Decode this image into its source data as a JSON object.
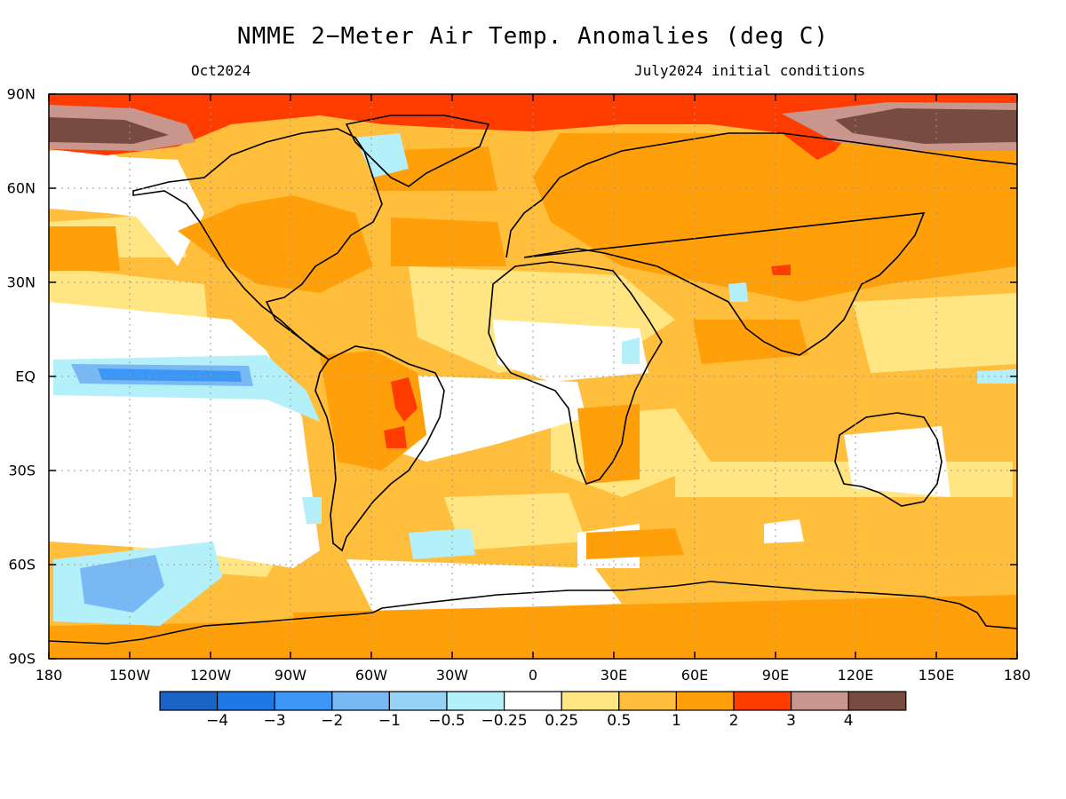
{
  "title": "NMME 2−Meter Air Temp. Anomalies (deg C)",
  "subtitle_left": "Oct2024",
  "subtitle_right": "July2024 initial conditions",
  "lat_labels": [
    "90N",
    "60N",
    "30N",
    "EQ",
    "30S",
    "60S",
    "90S"
  ],
  "lon_labels": [
    "180",
    "150W",
    "120W",
    "90W",
    "60W",
    "30W",
    "0",
    "30E",
    "60E",
    "90E",
    "120E",
    "150E",
    "180"
  ],
  "colorbar": {
    "labels": [
      "−4",
      "−3",
      "−2",
      "−1",
      "−0.5",
      "−0.25",
      "0.25",
      "0.5",
      "1",
      "2",
      "3",
      "4"
    ],
    "colors": [
      "#1a64c8",
      "#1e78e6",
      "#3c96f5",
      "#78b9f5",
      "#96d2f5",
      "#b4f0fa",
      "#ffffff",
      "#ffe682",
      "#ffbe3c",
      "#ffa00a",
      "#ff3c00",
      "#c8968c",
      "#784b40"
    ]
  },
  "colors": {
    "background": "#ffffff",
    "land_outline": "#000000",
    "grid": "#999999"
  }
}
